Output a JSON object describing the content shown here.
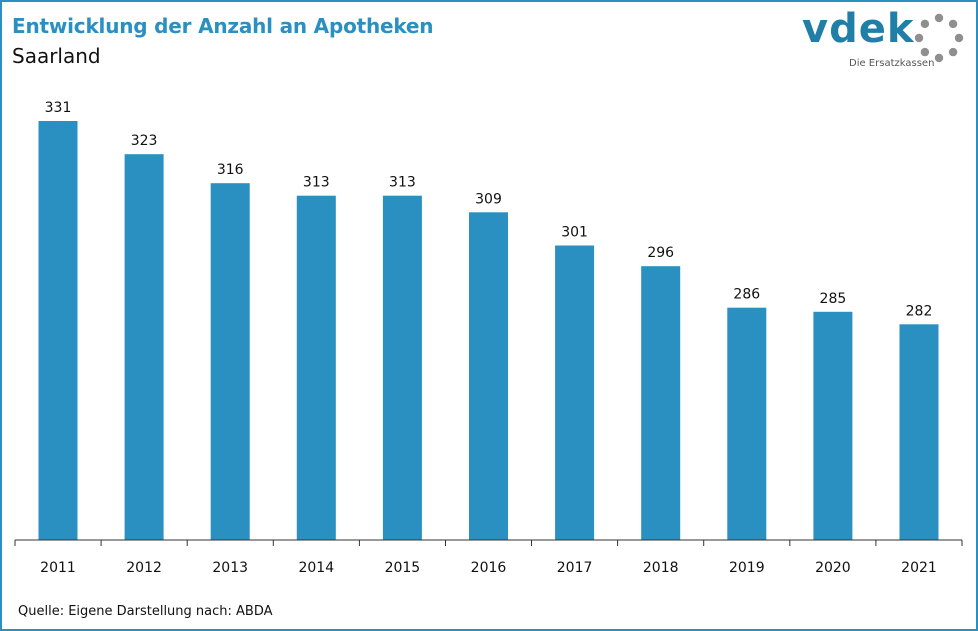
{
  "header": {
    "title": "Entwicklung der Anzahl an Apotheken",
    "subtitle": "Saarland"
  },
  "logo": {
    "wordmark": "vdek",
    "tagline": "Die Ersatzkassen"
  },
  "colors": {
    "bar": "#2a8fc1",
    "title": "#2a8fc1",
    "frame": "#2a8fc1",
    "axis": "#333333"
  },
  "chart_data": {
    "type": "bar",
    "title": "Entwicklung der Anzahl an Apotheken",
    "subtitle": "Saarland",
    "categories": [
      "2011",
      "2012",
      "2013",
      "2014",
      "2015",
      "2016",
      "2017",
      "2018",
      "2019",
      "2020",
      "2021"
    ],
    "values": [
      331,
      323,
      316,
      313,
      313,
      309,
      301,
      296,
      286,
      285,
      282
    ],
    "ylim": [
      230,
      335
    ],
    "grid": false,
    "legend": "none",
    "data_labels": true
  },
  "footer": {
    "source": "Quelle: Eigene Darstellung nach: ABDA"
  }
}
